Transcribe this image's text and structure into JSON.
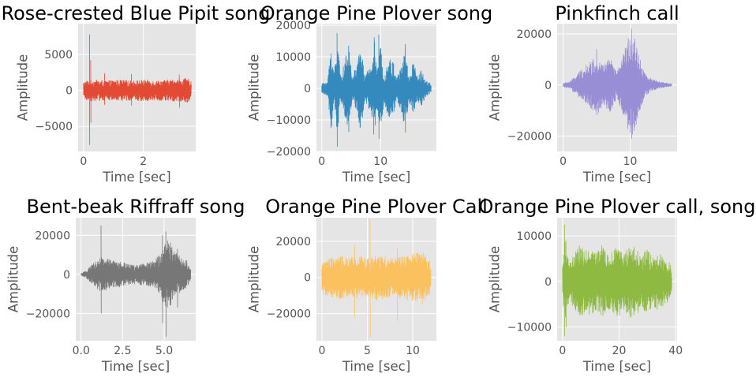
{
  "chart_data": [
    {
      "type": "line",
      "title": "Rose-crested Blue Pipit song",
      "xlabel": "Time [sec]",
      "ylabel": "Amplitude",
      "xlim": [
        -0.18,
        3.75
      ],
      "ylim": [
        -8500,
        9300
      ],
      "xticks": [
        0,
        2
      ],
      "yticks": [
        -5000,
        0,
        5000
      ],
      "ytick_labels": [
        "−5000",
        "0",
        "5000"
      ],
      "grid": true,
      "color": "#E24A33",
      "duration": 3.6,
      "envelope": {
        "t": [
          0,
          0.05,
          0.1,
          0.2,
          0.4,
          0.8,
          1.2,
          1.6,
          2.0,
          2.4,
          2.8,
          3.2,
          3.5,
          3.6
        ],
        "amp": [
          1200,
          1300,
          1400,
          1500,
          1500,
          1400,
          1500,
          1400,
          1500,
          1400,
          1500,
          1600,
          1700,
          1200
        ]
      },
      "spikes": [
        {
          "t": 0.2,
          "max": 7800,
          "min": -7600
        },
        {
          "t": 0.24,
          "max": 4200,
          "min": -4500
        },
        {
          "t": 0.7,
          "max": 2400,
          "min": -2000
        },
        {
          "t": 1.6,
          "max": 2300,
          "min": -2100
        },
        {
          "t": 3.2,
          "max": 2200,
          "min": -2400
        }
      ]
    },
    {
      "type": "line",
      "title": "Orange Pine Plover song",
      "xlabel": "Time [sec]",
      "ylabel": "Amplitude",
      "xlim": [
        -0.9,
        19.5
      ],
      "ylim": [
        -20000,
        20500
      ],
      "xticks": [
        0,
        10
      ],
      "yticks": [
        -20000,
        -10000,
        0,
        10000,
        20000
      ],
      "ytick_labels": [
        "−20000",
        "−10000",
        "0",
        "10000",
        "20000"
      ],
      "grid": true,
      "color": "#348ABD",
      "duration": 18.6,
      "envelope": {
        "t": [
          0,
          1.0,
          1.6,
          2.1,
          2.6,
          3.2,
          4.1,
          4.6,
          5.2,
          6.1,
          6.6,
          7.4,
          8.4,
          8.9,
          9.4,
          10.0,
          10.6,
          11.4,
          12.3,
          12.8,
          13.5,
          14.2,
          14.8,
          15.6,
          16.2,
          17.0,
          17.6,
          18.6
        ],
        "amp": [
          1500,
          2500,
          14000,
          5000,
          17000,
          4000,
          10000,
          14000,
          3500,
          9000,
          14000,
          4000,
          8000,
          17000,
          6000,
          14000,
          4500,
          10000,
          8000,
          4000,
          7000,
          14000,
          4000,
          9000,
          4000,
          6000,
          3000,
          1500
        ]
      },
      "spikes": [
        {
          "t": 2.6,
          "max": 17500,
          "min": -18500
        },
        {
          "t": 9.7,
          "max": 17000,
          "min": -16000
        },
        {
          "t": 14.2,
          "max": 14000,
          "min": -14000
        }
      ]
    },
    {
      "type": "line",
      "title": "Pinkfinch call",
      "xlabel": "Time [sec]",
      "ylabel": "Amplitude",
      "xlim": [
        -0.9,
        17.0
      ],
      "ylim": [
        -26000,
        24000
      ],
      "xticks": [
        0,
        10
      ],
      "yticks": [
        -20000,
        0,
        20000
      ],
      "ytick_labels": [
        "−20000",
        "0",
        "20000"
      ],
      "grid": true,
      "color": "#988ED5",
      "duration": 16.2,
      "envelope": {
        "t": [
          0,
          1.0,
          2.0,
          3.0,
          4.0,
          5.0,
          6.0,
          7.0,
          8.0,
          8.6,
          9.2,
          9.8,
          10.4,
          11.0,
          11.6,
          12.4,
          13.2,
          14.2,
          15.2,
          16.2
        ],
        "amp": [
          800,
          1500,
          4000,
          7000,
          9000,
          12000,
          8000,
          11000,
          5000,
          9000,
          14000,
          19000,
          21000,
          16000,
          9000,
          4000,
          2500,
          1500,
          1000,
          600
        ]
      },
      "spikes": [
        {
          "t": 10.2,
          "max": 22000,
          "min": -21000
        },
        {
          "t": 5.0,
          "max": 14000,
          "min": -11000
        }
      ]
    },
    {
      "type": "line",
      "title": "Bent-beak Riffraff song",
      "xlabel": "Time [sec]",
      "ylabel": "Amplitude",
      "xlim": [
        -0.32,
        6.9
      ],
      "ylim": [
        -34000,
        29000
      ],
      "xticks": [
        0.0,
        2.5,
        5.0
      ],
      "xtick_labels": [
        "0.0",
        "2.5",
        "5.0"
      ],
      "yticks": [
        -20000,
        0,
        20000
      ],
      "ytick_labels": [
        "−20000",
        "0",
        "20000"
      ],
      "grid": true,
      "color": "#777777",
      "duration": 6.6,
      "envelope": {
        "t": [
          0,
          0.3,
          0.6,
          0.9,
          1.2,
          1.6,
          2.0,
          2.4,
          2.8,
          3.2,
          3.6,
          4.0,
          4.4,
          4.8,
          5.0,
          5.3,
          5.6,
          6.0,
          6.4,
          6.6
        ],
        "amp": [
          500,
          2000,
          4500,
          7000,
          9000,
          8000,
          7000,
          6500,
          5500,
          5000,
          5500,
          6000,
          7000,
          12000,
          16000,
          18000,
          12000,
          9000,
          7000,
          3000
        ]
      },
      "spikes": [
        {
          "t": 1.2,
          "max": 25000,
          "min": -20000
        },
        {
          "t": 5.1,
          "max": 22000,
          "min": -32000
        },
        {
          "t": 4.9,
          "max": 20000,
          "min": -25000
        },
        {
          "t": 5.8,
          "max": 13000,
          "min": -17000
        }
      ]
    },
    {
      "type": "line",
      "title": "Orange Pine Plover Call",
      "xlabel": "Time [sec]",
      "ylabel": "Amplitude",
      "xlim": [
        -0.6,
        12.6
      ],
      "ylim": [
        -35000,
        33000
      ],
      "xticks": [
        0,
        5,
        10
      ],
      "yticks": [
        -20000,
        0,
        20000
      ],
      "ytick_labels": [
        "−20000",
        "0",
        "20000"
      ],
      "grid": true,
      "color": "#FBC15E",
      "duration": 12.0,
      "envelope": {
        "t": [
          0,
          1.0,
          2.0,
          3.0,
          4.0,
          5.0,
          6.0,
          7.0,
          8.0,
          9.0,
          10.0,
          11.0,
          12.0
        ],
        "amp": [
          9000,
          11000,
          12000,
          11000,
          12000,
          11000,
          13000,
          12000,
          11000,
          12000,
          13000,
          15000,
          9000
        ]
      },
      "spikes": [
        {
          "t": 5.3,
          "max": 32000,
          "min": -33000
        },
        {
          "t": 3.6,
          "max": 18000,
          "min": -22000
        },
        {
          "t": 8.3,
          "max": 16000,
          "min": -24000
        }
      ]
    },
    {
      "type": "line",
      "title": "Orange Pine Plover call, song",
      "xlabel": "Time [sec]",
      "ylabel": "Amplitude",
      "xlim": [
        -1.9,
        40.5
      ],
      "ylim": [
        -13000,
        14000
      ],
      "xticks": [
        0,
        20,
        40
      ],
      "yticks": [
        -10000,
        0,
        10000
      ],
      "ytick_labels": [
        "−10000",
        "0",
        "10000"
      ],
      "grid": true,
      "color": "#8EBA42",
      "duration": 38.6,
      "envelope": {
        "t": [
          0,
          0.8,
          1.5,
          2.5,
          4.0,
          6.0,
          8.0,
          10.0,
          12.0,
          14.0,
          16.0,
          18.0,
          20.0,
          22.0,
          24.0,
          26.0,
          28.0,
          30.0,
          32.0,
          34.0,
          36.0,
          38.0,
          38.6
        ],
        "amp": [
          4000,
          10000,
          6000,
          4000,
          6000,
          8000,
          7000,
          7500,
          6500,
          8000,
          6000,
          7000,
          8000,
          6500,
          8000,
          7500,
          6000,
          7000,
          5500,
          6500,
          5000,
          4500,
          2000
        ]
      },
      "spikes": [
        {
          "t": 0.7,
          "max": 12500,
          "min": -12000
        },
        {
          "t": 1.2,
          "max": 9000,
          "min": -10000
        }
      ]
    }
  ]
}
